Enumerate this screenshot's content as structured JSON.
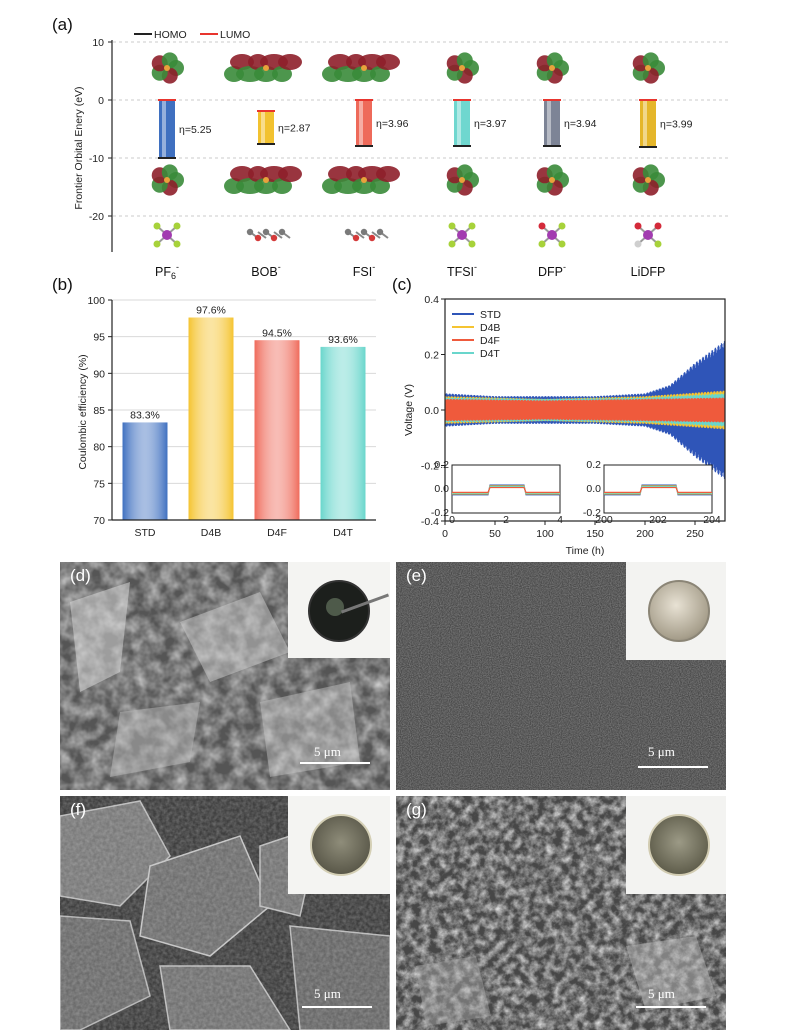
{
  "figure": {
    "panels": [
      "(a)",
      "(b)",
      "(c)",
      "(d)",
      "(e)",
      "(f)",
      "(g)"
    ]
  },
  "panel_a": {
    "legend": [
      "HOMO",
      "LUMO"
    ],
    "legend_colors": [
      "#222222",
      "#e8352e"
    ],
    "ylabel": "Frontier Orbital Enery (eV)",
    "yticks": [
      "10",
      "0",
      "-10",
      "-20"
    ],
    "molecules": [
      {
        "name": "PF6-",
        "label_main": "PF",
        "label_sub": "6",
        "label_sup": "-",
        "gap": "η=5.25",
        "color": "#3f70c0"
      },
      {
        "name": "BOB-",
        "label_main": "BOB",
        "label_sub": "",
        "label_sup": "-",
        "gap": "η=2.87",
        "color": "#f2c230"
      },
      {
        "name": "FSI-",
        "label_main": "FSI",
        "label_sub": "",
        "label_sup": "-",
        "gap": "η=3.96",
        "color": "#ee6a5a"
      },
      {
        "name": "TFSI-",
        "label_main": "TFSI",
        "label_sub": "",
        "label_sup": "-",
        "gap": "η=3.97",
        "color": "#6fd7cf"
      },
      {
        "name": "DFP-",
        "label_main": "DFP",
        "label_sub": "",
        "label_sup": "-",
        "gap": "η=3.94",
        "color": "#7d8496"
      },
      {
        "name": "LiDFP",
        "label_main": "LiDFP",
        "label_sub": "",
        "label_sup": "",
        "gap": "η=3.99",
        "color": "#e5b62a"
      }
    ]
  },
  "chart_data": [
    {
      "type": "bar",
      "panel": "(b)",
      "categories": [
        "STD",
        "D4B",
        "D4F",
        "D4T"
      ],
      "values": [
        83.3,
        97.6,
        94.5,
        93.6
      ],
      "data_labels": [
        "83.3%",
        "97.6%",
        "94.5%",
        "93.6%"
      ],
      "colors": [
        "#3f70c0",
        "#f5c431",
        "#ef6b5b",
        "#69d6cc"
      ],
      "ylabel": "Coulombic efficiency (%)",
      "ylim": [
        70,
        100
      ],
      "yticks": [
        "70",
        "75",
        "80",
        "85",
        "90",
        "95",
        "100"
      ],
      "grid": true
    },
    {
      "type": "line",
      "panel": "(c)",
      "xlabel": "Time (h)",
      "ylabel": "Voltage (V)",
      "xlim": [
        0,
        280
      ],
      "ylim": [
        -0.4,
        0.4
      ],
      "xticks": [
        "0",
        "50",
        "100",
        "150",
        "200",
        "250"
      ],
      "yticks": [
        "-0.4",
        "-0.2",
        "0.0",
        "0.2",
        "0.4"
      ],
      "legend_position": "top-left",
      "series": [
        {
          "name": "STD",
          "color": "#2f55b8",
          "envelope": [
            [
              0,
              0.06
            ],
            [
              50,
              0.05
            ],
            [
              150,
              0.05
            ],
            [
              200,
              0.06
            ],
            [
              225,
              0.09
            ],
            [
              250,
              0.17
            ],
            [
              280,
              0.25
            ]
          ]
        },
        {
          "name": "D4B",
          "color": "#f5c431",
          "envelope": [
            [
              0,
              0.05
            ],
            [
              100,
              0.04
            ],
            [
              200,
              0.05
            ],
            [
              280,
              0.07
            ]
          ]
        },
        {
          "name": "D4F",
          "color": "#ef5a3c",
          "envelope": [
            [
              0,
              0.04
            ],
            [
              100,
              0.035
            ],
            [
              200,
              0.04
            ],
            [
              280,
              0.045
            ]
          ]
        },
        {
          "name": "D4T",
          "color": "#69d6cc",
          "envelope": [
            [
              0,
              0.045
            ],
            [
              100,
              0.04
            ],
            [
              200,
              0.045
            ],
            [
              280,
              0.06
            ]
          ]
        }
      ],
      "insets": [
        {
          "xticks": [
            "0",
            "2",
            "4"
          ],
          "yticks": [
            "-0.2",
            "0.0",
            "0.2"
          ]
        },
        {
          "xticks": [
            "200",
            "202",
            "204"
          ],
          "yticks": [
            "-0.2",
            "0.0",
            "0.2"
          ]
        }
      ]
    }
  ],
  "sem_images": {
    "d": {
      "label": "(d)",
      "scale": "5 μm"
    },
    "e": {
      "label": "(e)",
      "scale": "5 μm"
    },
    "f": {
      "label": "(f)",
      "scale": "5 μm"
    },
    "g": {
      "label": "(g)",
      "scale": "5 μm"
    }
  }
}
